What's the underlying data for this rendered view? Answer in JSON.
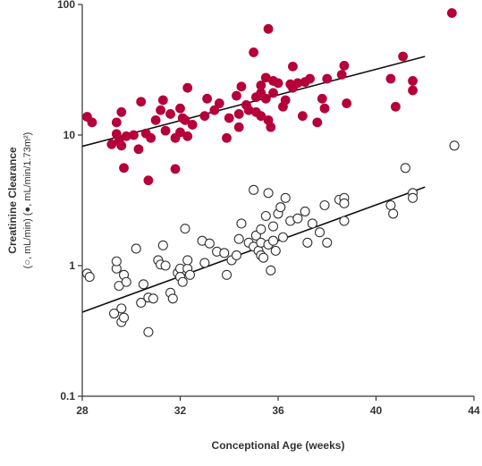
{
  "chart_data": {
    "type": "scatter",
    "title": "",
    "xlabel": "Conceptional Age (weeks)",
    "ylabel": "Creatinine Clearance",
    "ylabel_units": "(○, mL/min) (●, mL/min/1.73m²)",
    "xlim": [
      28,
      44
    ],
    "ylim": [
      0.1,
      100
    ],
    "yscale": "log",
    "x_ticks": [
      28,
      32,
      36,
      40,
      44
    ],
    "y_ticks": [
      0.1,
      1,
      10,
      100
    ],
    "x_tick_labels": [
      "28",
      "32",
      "36",
      "40",
      "44"
    ],
    "y_tick_labels": [
      "0.1",
      "1",
      "10",
      "100"
    ],
    "grid": false,
    "colors": {
      "filled": "#b5003a",
      "open": "#333333",
      "axis": "#333333"
    },
    "series": [
      {
        "marker": "filled-circle",
        "points": [
          [
            28.2,
            13.8
          ],
          [
            28.4,
            12.5
          ],
          [
            29.2,
            8.5
          ],
          [
            29.4,
            10.2
          ],
          [
            29.5,
            9.0
          ],
          [
            29.4,
            12.5
          ],
          [
            29.6,
            8.3
          ],
          [
            29.6,
            15.0
          ],
          [
            29.7,
            5.6
          ],
          [
            29.8,
            9.8
          ],
          [
            30.1,
            10.0
          ],
          [
            30.3,
            7.8
          ],
          [
            30.4,
            18.0
          ],
          [
            30.6,
            10.3
          ],
          [
            30.7,
            4.5
          ],
          [
            30.8,
            9.5
          ],
          [
            31.0,
            13.0
          ],
          [
            31.2,
            15.5
          ],
          [
            31.4,
            10.8
          ],
          [
            31.3,
            18.5
          ],
          [
            31.6,
            14.5
          ],
          [
            31.8,
            9.5
          ],
          [
            31.8,
            5.5
          ],
          [
            32.0,
            10.5
          ],
          [
            32.0,
            16.0
          ],
          [
            32.1,
            13.5
          ],
          [
            32.3,
            9.8
          ],
          [
            32.2,
            13.0
          ],
          [
            32.3,
            23.0
          ],
          [
            32.5,
            12.0
          ],
          [
            33.0,
            14.0
          ],
          [
            33.1,
            19.0
          ],
          [
            33.4,
            15.5
          ],
          [
            33.6,
            17.5
          ],
          [
            33.9,
            9.5
          ],
          [
            34.0,
            13.5
          ],
          [
            34.3,
            20.0
          ],
          [
            34.4,
            11.5
          ],
          [
            34.4,
            14.5
          ],
          [
            34.5,
            23.5
          ],
          [
            34.7,
            17.0
          ],
          [
            34.8,
            15.5
          ],
          [
            35.0,
            43.0
          ],
          [
            35.1,
            19.5
          ],
          [
            35.1,
            15.0
          ],
          [
            35.3,
            21.0
          ],
          [
            35.3,
            24.0
          ],
          [
            35.3,
            14.0
          ],
          [
            35.5,
            19.0
          ],
          [
            35.6,
            13.0
          ],
          [
            35.5,
            27.5
          ],
          [
            35.7,
            11.5
          ],
          [
            35.8,
            26.0
          ],
          [
            35.8,
            21.0
          ],
          [
            35.6,
            65.0
          ],
          [
            36.0,
            25.0
          ],
          [
            36.2,
            16.5
          ],
          [
            36.3,
            18.5
          ],
          [
            36.5,
            24.5
          ],
          [
            36.6,
            23.0
          ],
          [
            36.8,
            25.0
          ],
          [
            36.6,
            33.5
          ],
          [
            37.0,
            14.0
          ],
          [
            37.1,
            25.5
          ],
          [
            37.3,
            27.0
          ],
          [
            37.6,
            12.5
          ],
          [
            37.8,
            19.0
          ],
          [
            37.9,
            16.0
          ],
          [
            38.0,
            27.0
          ],
          [
            38.6,
            29.0
          ],
          [
            38.7,
            34.0
          ],
          [
            38.8,
            17.5
          ],
          [
            40.6,
            27.0
          ],
          [
            40.8,
            16.5
          ],
          [
            41.1,
            40.0
          ],
          [
            41.5,
            26.0
          ],
          [
            41.5,
            22.0
          ],
          [
            43.1,
            86.0
          ]
        ]
      },
      {
        "marker": "open-circle",
        "points": [
          [
            28.2,
            0.87
          ],
          [
            28.3,
            0.82
          ],
          [
            29.3,
            0.43
          ],
          [
            29.4,
            0.95
          ],
          [
            29.4,
            1.08
          ],
          [
            29.5,
            0.7
          ],
          [
            29.6,
            0.37
          ],
          [
            29.6,
            0.47
          ],
          [
            29.7,
            0.85
          ],
          [
            29.7,
            0.4
          ],
          [
            29.8,
            0.75
          ],
          [
            30.2,
            1.35
          ],
          [
            30.4,
            0.52
          ],
          [
            30.5,
            0.72
          ],
          [
            30.7,
            0.57
          ],
          [
            30.7,
            0.31
          ],
          [
            30.9,
            0.56
          ],
          [
            31.1,
            1.1
          ],
          [
            31.2,
            1.02
          ],
          [
            31.3,
            1.43
          ],
          [
            31.4,
            1.0
          ],
          [
            31.6,
            0.62
          ],
          [
            31.7,
            0.56
          ],
          [
            31.9,
            0.88
          ],
          [
            32.0,
            0.95
          ],
          [
            32.0,
            0.82
          ],
          [
            32.1,
            0.75
          ],
          [
            32.2,
            1.92
          ],
          [
            32.3,
            0.95
          ],
          [
            32.3,
            1.1
          ],
          [
            32.4,
            0.85
          ],
          [
            32.9,
            1.55
          ],
          [
            33.0,
            1.05
          ],
          [
            33.2,
            1.48
          ],
          [
            33.5,
            1.28
          ],
          [
            33.8,
            1.25
          ],
          [
            33.9,
            0.85
          ],
          [
            34.1,
            1.1
          ],
          [
            34.3,
            1.2
          ],
          [
            34.4,
            1.6
          ],
          [
            34.5,
            2.1
          ],
          [
            34.8,
            1.5
          ],
          [
            35.0,
            3.8
          ],
          [
            35.0,
            1.4
          ],
          [
            35.1,
            1.7
          ],
          [
            35.2,
            1.3
          ],
          [
            35.3,
            1.2
          ],
          [
            35.3,
            1.5
          ],
          [
            35.3,
            1.9
          ],
          [
            35.4,
            1.15
          ],
          [
            35.5,
            2.4
          ],
          [
            35.6,
            3.6
          ],
          [
            35.6,
            1.45
          ],
          [
            35.7,
            0.92
          ],
          [
            35.8,
            2.0
          ],
          [
            35.8,
            1.55
          ],
          [
            35.9,
            1.3
          ],
          [
            36.0,
            2.5
          ],
          [
            36.1,
            2.8
          ],
          [
            36.2,
            1.65
          ],
          [
            36.3,
            3.3
          ],
          [
            36.5,
            2.2
          ],
          [
            36.8,
            2.3
          ],
          [
            37.1,
            2.6
          ],
          [
            37.2,
            1.5
          ],
          [
            37.4,
            2.1
          ],
          [
            37.7,
            1.8
          ],
          [
            37.9,
            2.9
          ],
          [
            38.0,
            1.5
          ],
          [
            38.5,
            3.2
          ],
          [
            38.7,
            3.3
          ],
          [
            38.7,
            3.0
          ],
          [
            38.7,
            2.2
          ],
          [
            40.6,
            2.9
          ],
          [
            40.7,
            2.5
          ],
          [
            41.2,
            5.6
          ],
          [
            41.5,
            3.6
          ],
          [
            41.5,
            3.3
          ],
          [
            43.2,
            8.3
          ]
        ]
      }
    ],
    "trendlines": [
      {
        "for": "filled-circle",
        "x": [
          28,
          42
        ],
        "y": [
          8.2,
          40
        ]
      },
      {
        "for": "open-circle",
        "x": [
          28,
          42
        ],
        "y": [
          0.44,
          4.0
        ]
      }
    ]
  }
}
